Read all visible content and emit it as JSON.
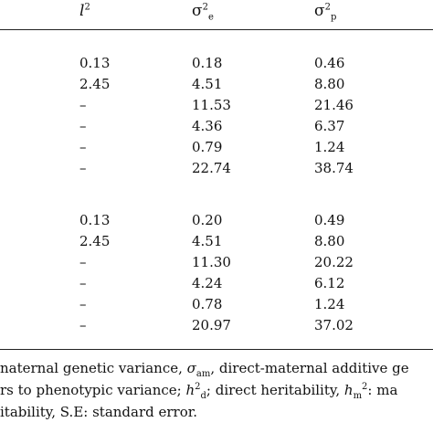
{
  "header": {
    "col1": "l",
    "col1_sup": "2",
    "col2": "σ",
    "col2_sup": "2",
    "col2_sub": "e",
    "col3": "σ",
    "col3_sup": "2",
    "col3_sub": "p"
  },
  "group1": [
    [
      "0.13",
      "0.18",
      "0.46"
    ],
    [
      "2.45",
      "4.51",
      "8.80"
    ],
    [
      "–",
      "11.53",
      "21.46"
    ],
    [
      "–",
      "4.36",
      "6.37"
    ],
    [
      "–",
      "0.79",
      "1.24"
    ],
    [
      "–",
      "22.74",
      "38.74"
    ]
  ],
  "group2": [
    [
      "0.13",
      "0.20",
      "0.49"
    ],
    [
      "2.45",
      "4.51",
      "8.80"
    ],
    [
      "–",
      "11.30",
      "20.22"
    ],
    [
      "–",
      "4.24",
      "6.12"
    ],
    [
      "–",
      "0.78",
      "1.24"
    ],
    [
      "–",
      "20.97",
      "37.02"
    ]
  ],
  "footnote": {
    "line1_a": "naternal genetic variance, ",
    "line1_sigma": "σ",
    "line1_sub": "am",
    "line1_b": ", direct-maternal additive ge",
    "line2_a": "rs to phenotypic variance; ",
    "line2_h": "h",
    "line2_sup": "2",
    "line2_sub": "d",
    "line2_b": "; direct heritability, ",
    "line2_hm": "h",
    "line2_hm_sub": "m",
    "line2_hm_sup": "2",
    "line2_c": ": ma",
    "line3": "itability, S.E: standard error."
  }
}
